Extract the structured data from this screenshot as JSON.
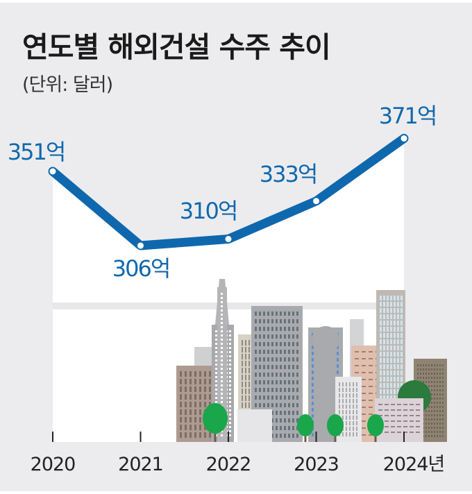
{
  "title": "연도별 해외건설 수주 추이",
  "subtitle": "(단위: 달러)",
  "chart_data": {
    "type": "line",
    "title": "연도별 해외건설 수주 추이",
    "unit": "(단위: 달러)",
    "categories": [
      "2020",
      "2021",
      "2022",
      "2023",
      "2024년"
    ],
    "values": [
      351,
      306,
      310,
      333,
      371
    ],
    "data_labels": [
      "351억",
      "306억",
      "310억",
      "333억",
      "371억"
    ],
    "line_color": "#0f68ad",
    "grid": false,
    "legend": "none"
  }
}
